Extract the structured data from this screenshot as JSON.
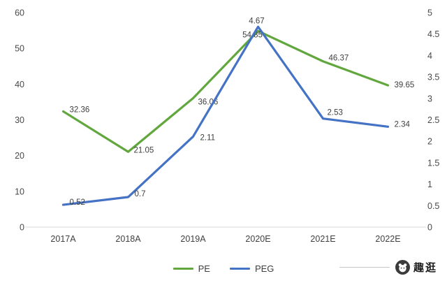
{
  "chart_data": {
    "type": "line",
    "title": "",
    "categories": [
      "2017A",
      "2018A",
      "2019A",
      "2020E",
      "2021E",
      "2022E"
    ],
    "series": [
      {
        "name": "PE",
        "axis": "left",
        "color": "#62a73e",
        "values": [
          32.36,
          21.05,
          36.06,
          54.85,
          46.37,
          39.65
        ]
      },
      {
        "name": "PEG",
        "axis": "right",
        "color": "#4472c4",
        "values": [
          0.52,
          0.7,
          2.11,
          4.67,
          2.53,
          2.34
        ]
      }
    ],
    "left_axis": {
      "min": 0,
      "max": 60,
      "step": 10
    },
    "right_axis": {
      "min": 0,
      "max": 5,
      "step": 0.5
    },
    "legend_position": "bottom",
    "grid": false
  },
  "legend": {
    "items": [
      "PE",
      "PEG"
    ]
  },
  "watermark": {
    "text": "趣逛",
    "icon": "panda-logo-icon"
  },
  "colors": {
    "pe_line": "#62a73e",
    "peg_line": "#4472c4",
    "axis_line": "#d9d9d9",
    "tick_text": "#4a4a4a",
    "label_text": "#3f3f3f"
  }
}
